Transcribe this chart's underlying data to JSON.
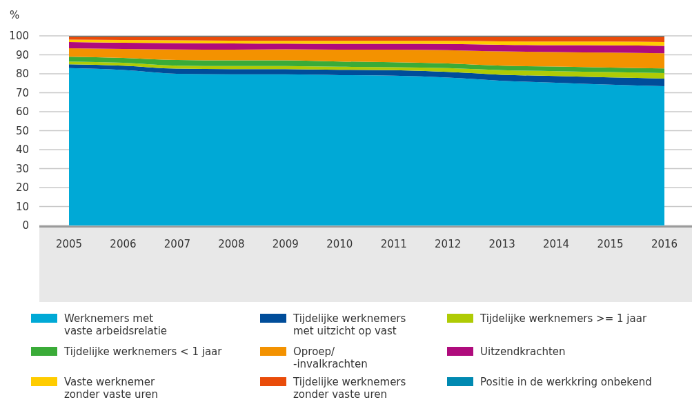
{
  "chart_data": {
    "type": "area",
    "stacked": true,
    "ylabel": "%",
    "categories": [
      "2005",
      "2006",
      "2007",
      "2008",
      "2009",
      "2010",
      "2011",
      "2012",
      "2013",
      "2014",
      "2015",
      "2016"
    ],
    "ylim": [
      0,
      100
    ],
    "yticks": [
      0,
      10,
      20,
      30,
      40,
      50,
      60,
      70,
      80,
      90,
      100
    ],
    "grid": "y",
    "legend": "bottom",
    "series": [
      {
        "name": "Werknemers met\nvaste arbeidsrelatie",
        "color": "#00a9d6",
        "values": [
          83,
          82,
          80,
          79.7,
          79.7,
          79.3,
          79,
          78,
          76.3,
          75.3,
          74.3,
          73.5
        ]
      },
      {
        "name": "Tijdelijke werknemers\nmet uitzicht op vast",
        "color": "#004d9a",
        "values": [
          2,
          2.3,
          2.7,
          2.8,
          2.8,
          2.8,
          2.9,
          3,
          3.2,
          3.5,
          3.8,
          4
        ]
      },
      {
        "name": "Tijdelijke werknemers >= 1 jaar",
        "color": "#afcb05",
        "values": [
          1.5,
          1.5,
          1.6,
          1.6,
          1.6,
          1.6,
          1.6,
          2,
          2.4,
          2.6,
          2.8,
          2.9
        ]
      },
      {
        "name": "Tijdelijke werknemers < 1 jaar",
        "color": "#3aab38",
        "values": [
          2.5,
          2.6,
          3,
          3,
          3,
          2.8,
          2.6,
          2.5,
          2.4,
          2.4,
          2.4,
          2.4
        ]
      },
      {
        "name": "Oproep/\n-invalkrachten",
        "color": "#f39200",
        "values": [
          4.5,
          4.7,
          5.5,
          5.6,
          5.8,
          6.2,
          6.6,
          7,
          7.5,
          7.7,
          7.9,
          8
        ]
      },
      {
        "name": "Uitzendkrachten",
        "color": "#af0b7c",
        "values": [
          3.2,
          3.3,
          3.4,
          3.3,
          3,
          3.1,
          3.1,
          3.2,
          3.5,
          3.6,
          3.8,
          3.9
        ]
      },
      {
        "name": "Vaste werknemer\nzonder vaste uren",
        "color": "#ffcc00",
        "values": [
          1.3,
          1.4,
          1.4,
          1.5,
          1.5,
          1.6,
          1.6,
          1.7,
          1.8,
          1.9,
          2,
          2
        ]
      },
      {
        "name": "Tijdelijke werknemers\nzonder vaste uren",
        "color": "#e94c0a",
        "values": [
          1.7,
          1.9,
          2.1,
          2.2,
          2.3,
          2.3,
          2.3,
          2.3,
          2.6,
          2.7,
          2.7,
          3
        ]
      },
      {
        "name": "Positie in de werkkring onbekend",
        "color": "#0089b1",
        "values": [
          0.3,
          0.3,
          0.3,
          0.3,
          0.3,
          0.3,
          0.3,
          0.3,
          0.3,
          0.3,
          0.3,
          0.3
        ]
      }
    ]
  }
}
